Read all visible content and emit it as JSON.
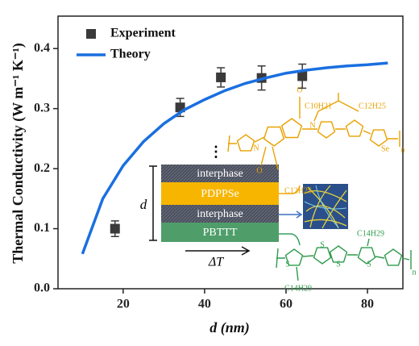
{
  "chart_data": {
    "type": "scatter",
    "x_label": "d (nm)",
    "y_label": "Thermal Conductivity (W m⁻¹ K⁻¹)",
    "xlim": [
      4,
      88.7
    ],
    "ylim": [
      0,
      0.454
    ],
    "xticks": [
      20,
      40,
      60,
      80
    ],
    "yticks": [
      {
        "value": 0,
        "label": "0.0"
      },
      0.1,
      0.2,
      0.3,
      0.4
    ],
    "legend": "upper left",
    "series": [
      {
        "name": "Experiment",
        "type": "errorbar",
        "color": "#3a3a3a",
        "x": [
          18,
          34,
          44,
          54,
          64
        ],
        "values": [
          0.1,
          0.302,
          0.352,
          0.351,
          0.354
        ],
        "errors": [
          0.013,
          0.015,
          0.016,
          0.02,
          0.02
        ]
      },
      {
        "name": "Theory",
        "type": "line",
        "color": "#1a6fe0",
        "x": [
          10,
          15,
          20,
          25,
          30,
          35,
          40,
          45,
          50,
          55,
          60,
          65,
          70,
          75,
          80,
          85
        ],
        "values": [
          0.058,
          0.15,
          0.205,
          0.245,
          0.275,
          0.298,
          0.315,
          0.33,
          0.342,
          0.351,
          0.359,
          0.364,
          0.368,
          0.371,
          0.373,
          0.376
        ]
      }
    ]
  },
  "inset": {
    "layers": [
      "interphase",
      "PDPPSe",
      "interphase",
      "PBTTT"
    ],
    "thickness_label": "d",
    "gradient_label": "ΔT",
    "ellipsis": "⋮",
    "pdppse_labels": [
      "C10H21",
      "C12H25",
      "C12H25",
      "N",
      "N",
      "O",
      "O",
      "Se",
      "n"
    ],
    "pbttt_labels": [
      "C14H29",
      "C14H29",
      "S",
      "S",
      "S",
      "S",
      "n"
    ]
  }
}
